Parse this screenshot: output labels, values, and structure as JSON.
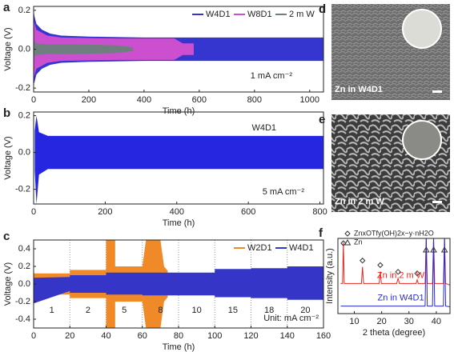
{
  "chart_data": [
    {
      "type": "band",
      "panel": "a",
      "xlabel": "Time (h)",
      "ylabel": "Voltage (V)",
      "xlim": [
        0,
        1050
      ],
      "xticks": [
        0,
        200,
        400,
        600,
        800,
        1000
      ],
      "ylim": [
        -0.22,
        0.22
      ],
      "yticks": [
        -0.2,
        {
          "value": 0,
          "label": "0.0"
        },
        0.2
      ],
      "annotations": [
        "1 mA cm⁻²"
      ],
      "series": [
        {
          "name": "W4D1",
          "color": "#3535d0",
          "x": [
            0,
            3,
            10,
            30,
            60,
            100,
            200,
            400,
            600,
            800,
            1050
          ],
          "high": [
            0.2,
            0.17,
            0.13,
            0.1,
            0.08,
            0.07,
            0.065,
            0.06,
            0.06,
            0.06,
            0.06
          ],
          "low": [
            -0.18,
            -0.17,
            -0.13,
            -0.1,
            -0.08,
            -0.07,
            -0.065,
            -0.06,
            -0.06,
            -0.06,
            -0.06
          ]
        },
        {
          "name": "W8D1",
          "color": "#cc4fd0",
          "x": [
            0,
            10,
            50,
            100,
            300,
            510,
            540,
            580
          ],
          "high": [
            0.15,
            0.1,
            0.07,
            0.06,
            0.055,
            0.055,
            0.03,
            0.03
          ],
          "low": [
            -0.15,
            -0.1,
            -0.07,
            -0.06,
            -0.055,
            -0.055,
            -0.03,
            -0.03
          ]
        },
        {
          "name": "2 m W",
          "color": "#6f7f7f",
          "x": [
            0,
            10,
            50,
            150,
            300,
            360
          ],
          "high": [
            0.04,
            0.03,
            0.025,
            0.025,
            0.02,
            0.01
          ],
          "low": [
            -0.04,
            -0.03,
            -0.025,
            -0.025,
            -0.02,
            -0.01
          ]
        }
      ]
    },
    {
      "type": "band",
      "panel": "b",
      "xlabel": "Time (h)",
      "ylabel": "Voltage (V)",
      "xlim": [
        0,
        810
      ],
      "xticks": [
        0,
        200,
        400,
        600,
        800
      ],
      "ylim": [
        -0.28,
        0.22
      ],
      "yticks": [
        -0.2,
        {
          "value": 0,
          "label": "0.0"
        },
        0.2
      ],
      "annotations": [
        "W4D1",
        "5 mA cm⁻²"
      ],
      "series": [
        {
          "color": "#2626e0",
          "x": [
            3,
            8,
            15,
            40,
            100,
            400,
            810
          ],
          "high": [
            0.12,
            0.2,
            0.11,
            0.09,
            0.09,
            0.09,
            0.09
          ],
          "low": [
            -0.1,
            -0.28,
            -0.12,
            -0.09,
            -0.09,
            -0.09,
            -0.09
          ]
        }
      ]
    },
    {
      "type": "band",
      "panel": "c",
      "xlabel": "Time (h)",
      "ylabel": "Voltage (V)",
      "xlim": [
        0,
        160
      ],
      "xticks": [
        0,
        20,
        40,
        60,
        80,
        100,
        120,
        140,
        160
      ],
      "ylim": [
        -0.5,
        0.5
      ],
      "yticks": [
        -0.4,
        -0.2,
        {
          "value": 0,
          "label": "0.0"
        },
        0.2,
        0.4
      ],
      "vlines": [
        20,
        40,
        60,
        80,
        100,
        120,
        140
      ],
      "segment_labels": [
        "1",
        "2",
        "5",
        "8",
        "10",
        "15",
        "18",
        "20"
      ],
      "annotations": [
        "Unit: mA cm⁻²"
      ],
      "series": [
        {
          "name": "W2D1",
          "color": "#f08a28",
          "x": [
            0,
            20,
            20,
            40,
            40,
            45,
            45,
            60,
            62,
            70,
            72,
            74
          ],
          "high": [
            0.12,
            0.12,
            0.16,
            0.16,
            0.5,
            0.5,
            0.2,
            0.2,
            0.5,
            0.5,
            0.2,
            0.15
          ],
          "low": [
            -0.12,
            -0.12,
            -0.16,
            -0.16,
            -0.5,
            -0.5,
            -0.2,
            -0.2,
            -0.5,
            -0.5,
            -0.2,
            -0.15
          ]
        },
        {
          "name": "W4D1",
          "color": "#3535c8",
          "x": [
            0,
            20,
            20,
            40,
            40,
            60,
            60,
            80,
            80,
            100,
            100,
            120,
            120,
            140,
            140,
            160
          ],
          "high": [
            0.07,
            0.08,
            0.1,
            0.1,
            0.13,
            0.13,
            0.13,
            0.13,
            0.13,
            0.13,
            0.17,
            0.17,
            0.18,
            0.18,
            0.2,
            0.2
          ],
          "low": [
            -0.22,
            -0.08,
            -0.1,
            -0.1,
            -0.12,
            -0.12,
            -0.13,
            -0.13,
            -0.13,
            -0.13,
            -0.15,
            -0.15,
            -0.16,
            -0.16,
            -0.18,
            -0.18
          ]
        }
      ]
    },
    {
      "type": "line",
      "panel": "f",
      "xlabel": "2 theta (degree)",
      "ylabel": "Intensity (a.u.)",
      "xlim": [
        4,
        45
      ],
      "xticks": [
        10,
        20,
        30,
        40
      ],
      "ylim": [
        0,
        100
      ],
      "phases": [
        {
          "name": "ZnxOTfy(OH)2x−y·nH2O",
          "symbol": "diamond",
          "positions": [
            6,
            13,
            19.5,
            26,
            33
          ]
        },
        {
          "name": "Zn",
          "symbol": "triangle",
          "positions": [
            36.3,
            39,
            43
          ]
        }
      ],
      "series": [
        {
          "name": "Zn in 2 m W",
          "color": "#e8281e",
          "x": [
            5,
            5.7,
            6,
            6.3,
            12.6,
            13,
            13.4,
            19.1,
            19.5,
            19.9,
            25.5,
            26,
            26.5,
            32.6,
            33,
            33.4,
            35.9,
            36.3,
            36.7,
            38.6,
            39,
            39.4,
            42.6,
            43,
            43.4,
            45
          ],
          "values": [
            40,
            40,
            95,
            40,
            40,
            62,
            40,
            40,
            56,
            40,
            40,
            47,
            40,
            40,
            45,
            40,
            40,
            100,
            40,
            40,
            100,
            40,
            40,
            100,
            40,
            38
          ]
        },
        {
          "name": "Zn in W4D1",
          "color": "#2a2ad0",
          "x": [
            5,
            35.9,
            36.3,
            36.7,
            38.6,
            39,
            39.4,
            42.6,
            43,
            43.4,
            45
          ],
          "values": [
            10,
            10,
            100,
            10,
            10,
            100,
            10,
            10,
            100,
            10,
            9
          ]
        }
      ]
    }
  ],
  "images": [
    {
      "panel": "d",
      "caption": "Zn in W4D1"
    },
    {
      "panel": "e",
      "caption": "Zn in 2 m W"
    }
  ]
}
